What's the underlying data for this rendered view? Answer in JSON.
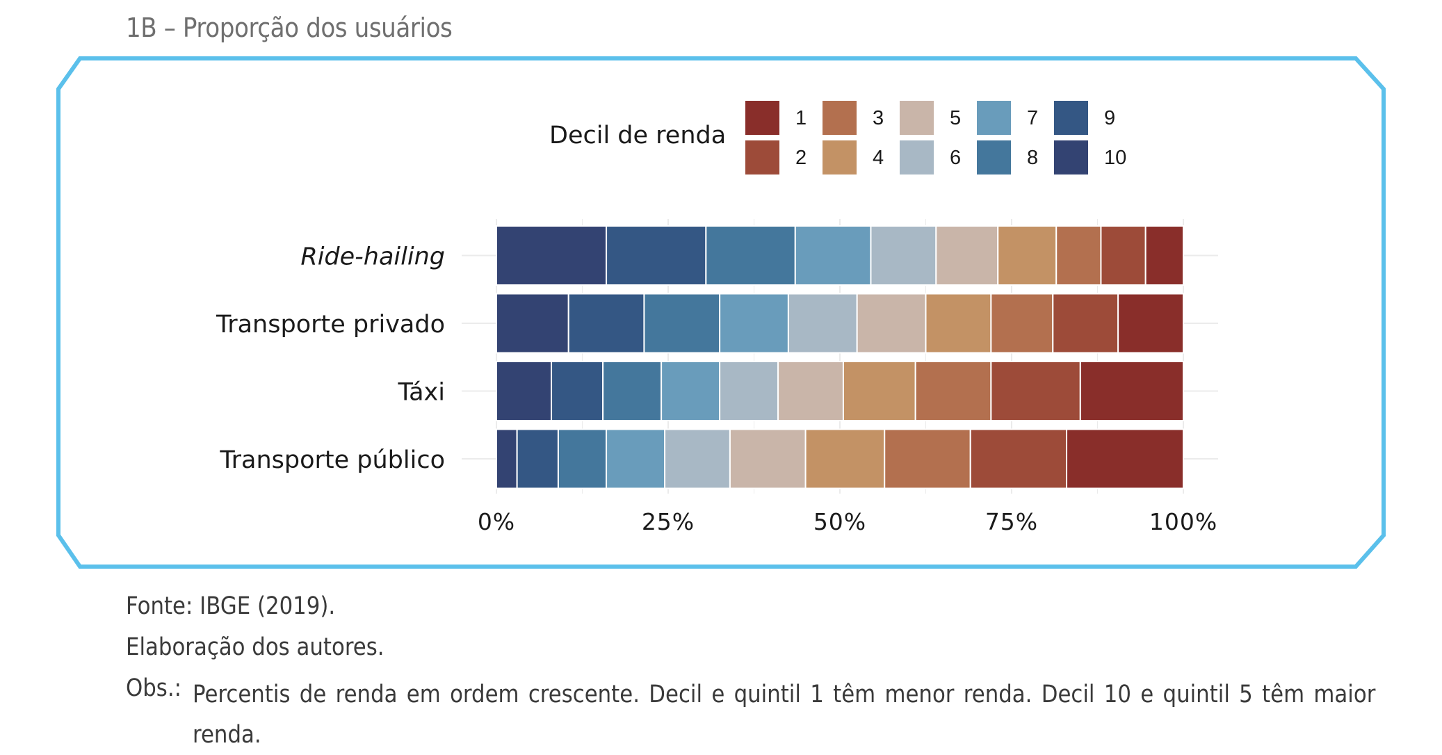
{
  "figure": {
    "title": "1B – Proporção dos usuários",
    "frame_color": "#5bc0eb"
  },
  "notes": {
    "source": "Fonte: IBGE (2019).",
    "author": "Elaboração dos autores.",
    "obs_label": "Obs.:",
    "obs_text": "Percentis de renda em ordem crescente. Decil e quintil 1 têm menor renda. Decil 10 e quintil 5 têm maior renda."
  },
  "chart_data": {
    "type": "bar",
    "orientation": "horizontal",
    "stacked": true,
    "normalized": true,
    "legend_title": "Decil de renda",
    "legend_position": "top",
    "categories": [
      "Ride-hailing",
      "Transporte privado",
      "Táxi",
      "Transporte público"
    ],
    "category_italic": [
      true,
      false,
      false,
      false
    ],
    "x_ticks": [
      "0%",
      "25%",
      "50%",
      "75%",
      "100%"
    ],
    "xlim": [
      0,
      100
    ],
    "series": [
      {
        "name": "1",
        "color": "#892e2a",
        "values": [
          5.5,
          9.5,
          15,
          17
        ]
      },
      {
        "name": "2",
        "color": "#9d4b39",
        "values": [
          6.5,
          9.5,
          13,
          14
        ]
      },
      {
        "name": "3",
        "color": "#b3704f",
        "values": [
          6.5,
          9,
          11,
          12.5
        ]
      },
      {
        "name": "4",
        "color": "#c39265",
        "values": [
          8.5,
          9.5,
          10.5,
          11.5
        ]
      },
      {
        "name": "5",
        "color": "#c9b5a9",
        "values": [
          9,
          10,
          9.5,
          11
        ]
      },
      {
        "name": "6",
        "color": "#a8b8c5",
        "values": [
          9.5,
          10,
          8.5,
          9.5
        ]
      },
      {
        "name": "7",
        "color": "#699cbb",
        "values": [
          11,
          10,
          8.5,
          8.5
        ]
      },
      {
        "name": "8",
        "color": "#44779c",
        "values": [
          13,
          11,
          8.5,
          7
        ]
      },
      {
        "name": "9",
        "color": "#345784",
        "values": [
          14.5,
          11,
          7.5,
          6
        ]
      },
      {
        "name": "10",
        "color": "#334372",
        "values": [
          16,
          10.5,
          8,
          3
        ]
      }
    ]
  }
}
